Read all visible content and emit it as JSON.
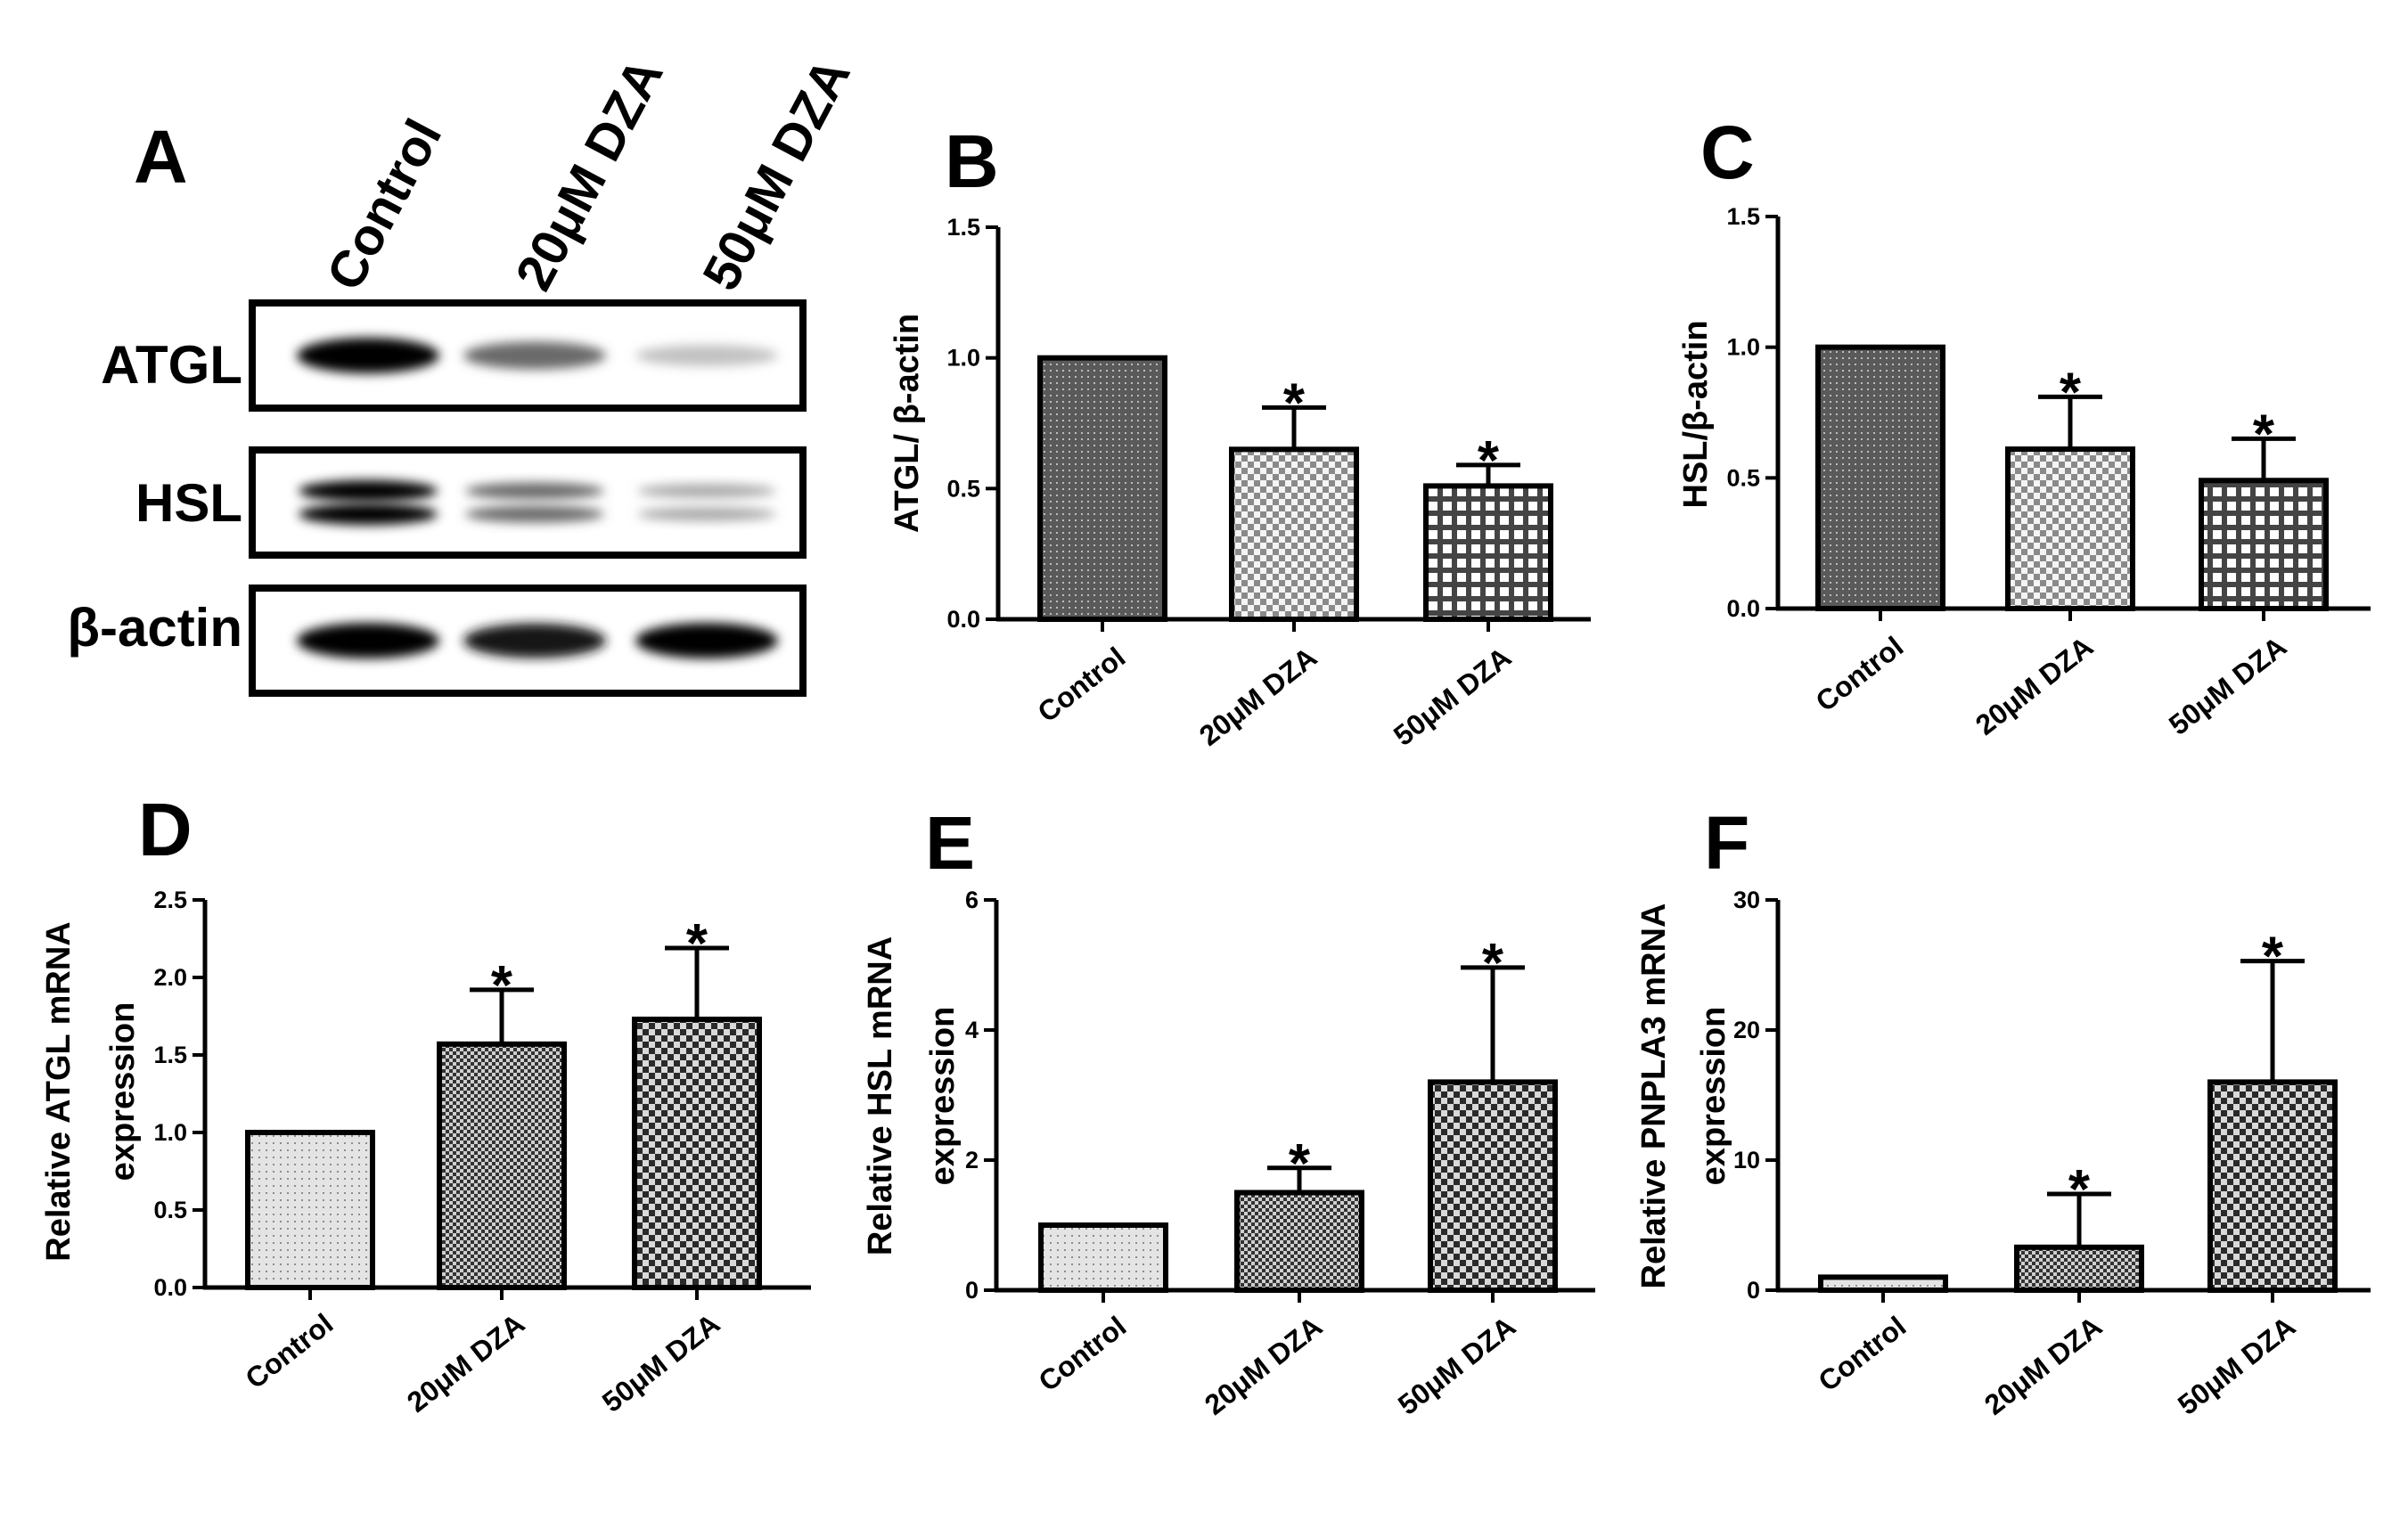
{
  "blot": {
    "panel_label": "A",
    "lanes": [
      "Control",
      "20μM DZA",
      "50μM DZA"
    ],
    "rows": [
      {
        "label": "ATGL",
        "intensity": [
          1.0,
          0.6,
          0.25
        ],
        "double_band": false
      },
      {
        "label": "HSL",
        "intensity": [
          1.0,
          0.6,
          0.35
        ],
        "double_band": true
      },
      {
        "label": "β-actin",
        "intensity": [
          1.0,
          0.95,
          1.0
        ],
        "double_band": false
      }
    ]
  },
  "chart_data": [
    {
      "panel": "B",
      "type": "bar",
      "title": "",
      "categories": [
        "Control",
        "20μM DZA",
        "50μM DZA"
      ],
      "values": [
        1.0,
        0.65,
        0.51
      ],
      "errors": [
        0,
        0.16,
        0.08
      ],
      "significance": [
        "",
        "*",
        "*"
      ],
      "ylabel": "ATGL/ β-actin",
      "ylim": [
        0,
        1.5
      ],
      "yticks": [
        "0.0",
        "0.5",
        "1.0",
        "1.5"
      ],
      "patterns": [
        "dots-dark",
        "check-fine",
        "grid-open"
      ]
    },
    {
      "panel": "C",
      "type": "bar",
      "title": "",
      "categories": [
        "Control",
        "20μM DZA",
        "50μM DZA"
      ],
      "values": [
        1.0,
        0.61,
        0.49
      ],
      "errors": [
        0,
        0.2,
        0.16
      ],
      "significance": [
        "",
        "*",
        "*"
      ],
      "ylabel": "HSL/β-actin",
      "ylim": [
        0,
        1.5
      ],
      "yticks": [
        "0.0",
        "0.5",
        "1.0",
        "1.5"
      ],
      "patterns": [
        "dots-dark",
        "check-fine",
        "grid-open"
      ]
    },
    {
      "panel": "D",
      "type": "bar",
      "title": "",
      "categories": [
        "Control",
        "20μM DZA",
        "50μM DZA"
      ],
      "values": [
        1.0,
        1.57,
        1.73
      ],
      "errors": [
        0,
        0.35,
        0.46
      ],
      "significance": [
        "",
        "*",
        "*"
      ],
      "ylabel": [
        "Relative ATGL mRNA",
        "expression"
      ],
      "ylim": [
        0,
        2.5
      ],
      "yticks": [
        "0.0",
        "0.5",
        "1.0",
        "1.5",
        "2.0",
        "2.5"
      ],
      "patterns": [
        "dots-light",
        "check-fine-dark",
        "check-dark"
      ]
    },
    {
      "panel": "E",
      "type": "bar",
      "title": "",
      "categories": [
        "Control",
        "20μM DZA",
        "50μM DZA"
      ],
      "values": [
        1.0,
        1.5,
        3.2
      ],
      "errors": [
        0,
        0.38,
        1.76
      ],
      "significance": [
        "",
        "*",
        "*"
      ],
      "ylabel": [
        "Relative HSL mRNA",
        "expression"
      ],
      "ylim": [
        0,
        6
      ],
      "yticks": [
        "0",
        "2",
        "4",
        "6"
      ],
      "patterns": [
        "dots-light",
        "check-fine-dark",
        "check-dark"
      ]
    },
    {
      "panel": "F",
      "type": "bar",
      "title": "",
      "categories": [
        "Control",
        "20μM DZA",
        "50μM DZA"
      ],
      "values": [
        1.0,
        3.3,
        16.0
      ],
      "errors": [
        0,
        4.1,
        9.3
      ],
      "significance": [
        "",
        "*",
        "*"
      ],
      "ylabel": [
        "Relative PNPLA3 mRNA",
        "expression"
      ],
      "ylim": [
        0,
        30
      ],
      "yticks": [
        "0",
        "10",
        "20",
        "30"
      ],
      "patterns": [
        "dots-light",
        "check-fine-dark",
        "check-dark"
      ]
    }
  ]
}
